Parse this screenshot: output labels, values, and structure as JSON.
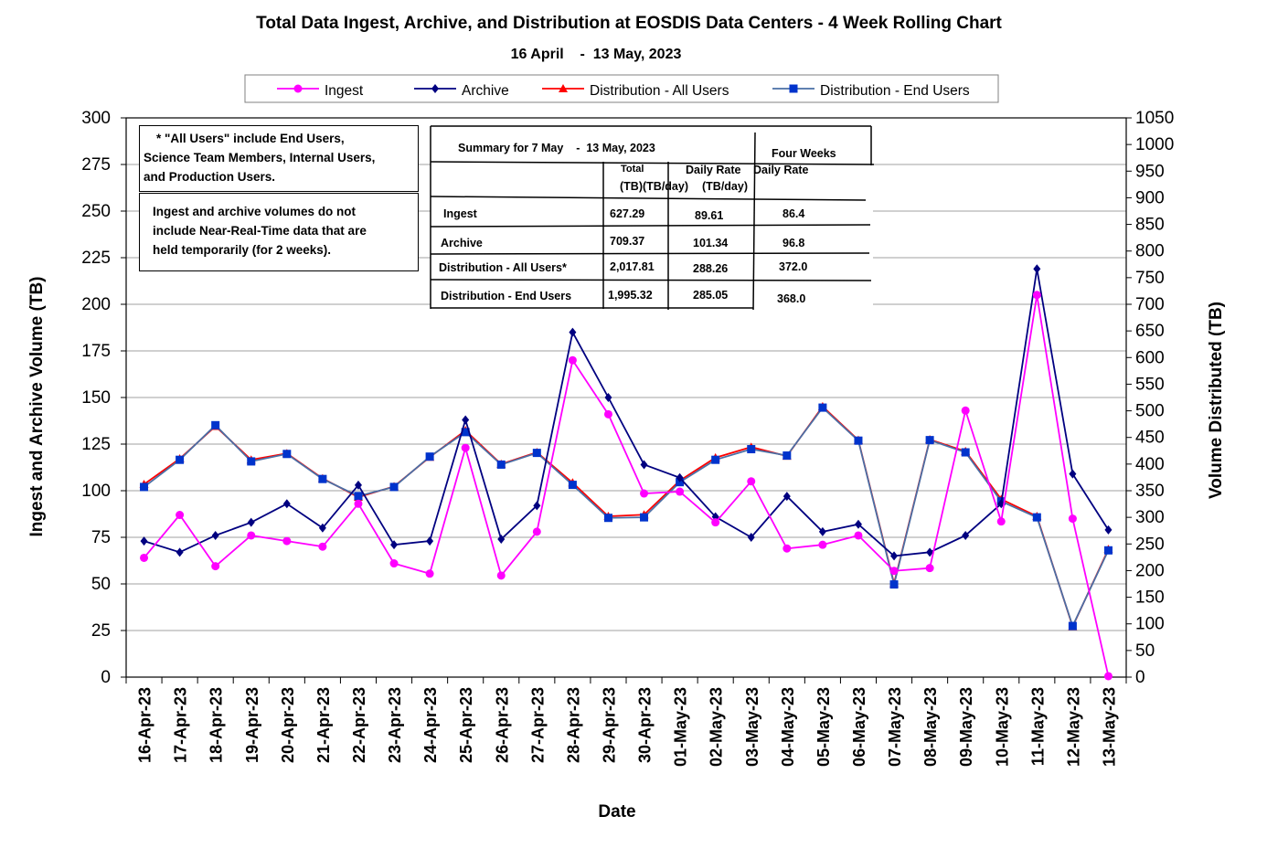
{
  "title": "Total Data Ingest, Archive, and Distribution at EOSDIS Data Centers  - 4 Week Rolling Chart",
  "subtitle": "16 April    -  13 May, 2023",
  "notes": {
    "all_users": [
      "* \"All Users\" include End Users,",
      "Science Team Members, Internal Users,",
      "and Production Users."
    ],
    "ingest_archive": [
      "Ingest and archive volumes do not",
      "include Near-Real-Time data that are",
      "held temporarily (for 2 weeks)."
    ]
  },
  "summary": {
    "title": "Summary for 7 May    -  13 May, 2023",
    "four_weeks_header": "Four Weeks",
    "col_total": "Total",
    "col_tb": "(TB)",
    "col_daily_rate": "Daily Rate",
    "col_daily_unit": "(TB/day)",
    "col_daily_rate_2": "Daily Rate",
    "col_daily_unit_2": "(TB/day)",
    "rows": [
      {
        "label": "Ingest",
        "total": "627.29",
        "daily": "89.61",
        "four_weeks": "86.4"
      },
      {
        "label": "Archive",
        "total": "709.37",
        "daily": "101.34",
        "four_weeks": "96.8"
      },
      {
        "label": "Distribution - All Users*",
        "total": "2,017.81",
        "daily": "288.26",
        "four_weeks": "372.0"
      },
      {
        "label": "Distribution - End Users",
        "total": "1,995.32",
        "daily": "285.05",
        "four_weeks": "368.0"
      }
    ]
  },
  "chart_data": {
    "type": "line",
    "title": "Total Data Ingest, Archive, and Distribution at EOSDIS Data Centers  - 4 Week Rolling Chart",
    "subtitle": "16 April    -  13 May, 2023",
    "xlabel": "Date",
    "ylabel": "Ingest and Archive Volume (TB)",
    "y2label": "Volume Distributed (TB)",
    "ylim": [
      0,
      300
    ],
    "y2lim": [
      0,
      1050
    ],
    "yticks": [
      0,
      25,
      50,
      75,
      100,
      125,
      150,
      175,
      200,
      225,
      250,
      275,
      300
    ],
    "y2ticks": [
      0,
      50,
      100,
      150,
      200,
      250,
      300,
      350,
      400,
      450,
      500,
      550,
      600,
      650,
      700,
      750,
      800,
      850,
      900,
      950,
      1000,
      1050
    ],
    "grid": "horizontal",
    "legend": "top",
    "categories": [
      "16-Apr-23",
      "17-Apr-23",
      "18-Apr-23",
      "19-Apr-23",
      "20-Apr-23",
      "21-Apr-23",
      "22-Apr-23",
      "23-Apr-23",
      "24-Apr-23",
      "25-Apr-23",
      "26-Apr-23",
      "27-Apr-23",
      "28-Apr-23",
      "29-Apr-23",
      "30-Apr-23",
      "01-May-23",
      "02-May-23",
      "03-May-23",
      "04-May-23",
      "05-May-23",
      "06-May-23",
      "07-May-23",
      "08-May-23",
      "09-May-23",
      "10-May-23",
      "11-May-23",
      "12-May-23",
      "13-May-23"
    ],
    "series": [
      {
        "name": "Ingest",
        "axis": "left",
        "color": "#ff00ff",
        "marker": "circle",
        "values": [
          64,
          87,
          59.5,
          76,
          73,
          70,
          93,
          61,
          55.5,
          123,
          54.5,
          78,
          170,
          141,
          98.5,
          99.5,
          83,
          105,
          69,
          71,
          76,
          57,
          58.5,
          143,
          83.5,
          205,
          85,
          0.5
        ]
      },
      {
        "name": "Archive",
        "axis": "left",
        "color": "#000080",
        "marker": "diamond",
        "values": [
          73,
          67,
          76,
          83,
          93,
          80,
          103,
          71,
          73,
          138,
          74,
          92,
          185,
          150,
          114,
          107,
          86,
          75,
          97,
          78,
          82,
          65,
          67,
          76,
          93,
          219,
          109,
          79
        ]
      },
      {
        "name": "Distribution - All Users",
        "axis": "right",
        "color": "#ff0000",
        "marker": "triangle",
        "values": [
          362,
          410,
          471,
          408,
          420,
          373,
          338,
          358,
          413,
          463,
          400,
          422,
          365,
          302,
          305,
          369,
          412,
          432,
          415,
          508,
          445,
          176,
          446,
          424,
          334,
          302,
          95,
          240
        ]
      },
      {
        "name": "Distribution - End Users",
        "axis": "right",
        "color": "#0033cc",
        "marker": "square",
        "values": [
          357,
          408,
          473,
          405,
          419,
          372,
          340,
          357,
          414,
          460,
          399,
          421,
          361,
          299,
          300,
          366,
          408,
          428,
          416,
          506,
          444,
          174,
          445,
          422,
          330,
          300,
          96,
          238
        ]
      }
    ]
  }
}
